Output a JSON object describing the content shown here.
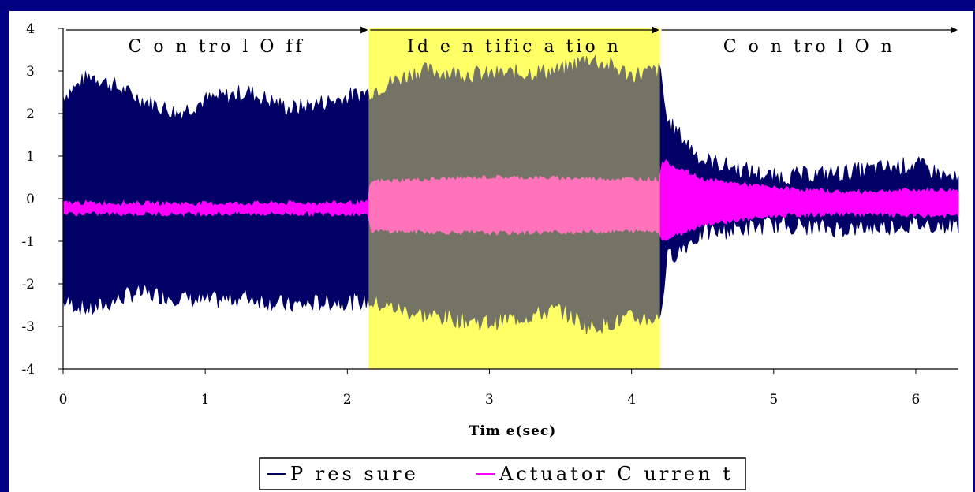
{
  "chart_data": {
    "type": "line",
    "xlabel": "Tim e(sec)",
    "ylabel": "",
    "xlim": [
      0,
      6.3
    ],
    "ylim": [
      -4,
      4
    ],
    "x_ticks": [
      0,
      1,
      2,
      3,
      4,
      5,
      6
    ],
    "y_ticks": [
      4,
      3,
      2,
      1,
      0,
      -1,
      -2,
      -3,
      -4
    ],
    "grid": false,
    "legend_position": "bottom",
    "highlight_region": {
      "x": [
        2.15,
        4.2
      ],
      "color": "#ffff66"
    },
    "phases": [
      {
        "label": "C o n tro l O ff",
        "x": [
          0,
          2.15
        ]
      },
      {
        "label": "Id e n tific a tio n",
        "x": [
          2.15,
          4.2
        ]
      },
      {
        "label": "C o n tro l O n",
        "x": [
          4.2,
          6.3
        ]
      }
    ],
    "series": [
      {
        "name": "P res sure",
        "color": "#000066",
        "envelope": {
          "x": [
            0,
            0.2,
            0.5,
            0.8,
            1.0,
            1.3,
            1.6,
            1.9,
            2.15,
            2.5,
            3.0,
            3.5,
            3.7,
            4.0,
            4.2,
            4.25,
            4.5,
            5.0,
            5.5,
            6.0,
            6.3
          ],
          "upper": [
            2.4,
            2.9,
            2.4,
            2.0,
            2.3,
            2.5,
            2.1,
            2.3,
            2.5,
            3.0,
            2.9,
            3.0,
            3.3,
            2.9,
            3.0,
            1.8,
            0.9,
            0.5,
            0.6,
            0.8,
            0.4
          ],
          "lower": [
            -2.4,
            -2.6,
            -2.2,
            -2.3,
            -2.4,
            -2.3,
            -2.5,
            -2.4,
            -2.4,
            -2.7,
            -2.9,
            -2.6,
            -3.0,
            -2.8,
            -2.8,
            -1.4,
            -0.8,
            -0.6,
            -0.7,
            -0.6,
            -0.6
          ]
        }
      },
      {
        "name": "Actuator C urren t",
        "color": "#ff00ff",
        "envelope": {
          "x": [
            0,
            1.0,
            2.15,
            2.16,
            3.0,
            4.2,
            4.21,
            4.5,
            5.0,
            5.5,
            6.0,
            6.3
          ],
          "upper": [
            -0.1,
            -0.12,
            -0.1,
            0.4,
            0.5,
            0.45,
            0.9,
            0.45,
            0.25,
            0.15,
            0.2,
            0.2
          ],
          "lower": [
            -0.35,
            -0.35,
            -0.35,
            -0.75,
            -0.8,
            -0.75,
            -1.0,
            -0.6,
            -0.4,
            -0.35,
            -0.4,
            -0.4
          ]
        }
      }
    ]
  }
}
